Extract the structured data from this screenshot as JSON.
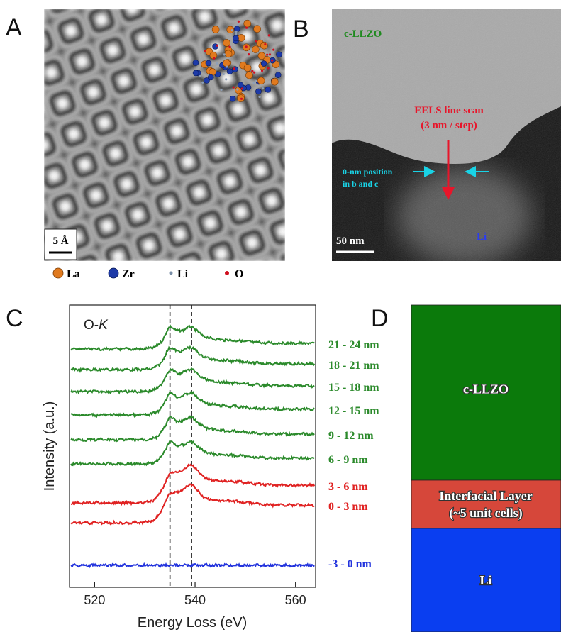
{
  "panel_a": {
    "label": "A",
    "scale_bar": "5 Å",
    "legend": [
      "La",
      "Zr",
      "Li",
      "O"
    ]
  },
  "panel_b": {
    "label": "B",
    "phase_top": "c-LLZO",
    "scan_title": "EELS line scan",
    "scan_step": "(3 nm / step)",
    "position_note": [
      "0-nm position",
      "in b and c"
    ],
    "scale_bar": "50 nm",
    "phase_bottom": "Li"
  },
  "panel_c": {
    "label": "C",
    "edge": "O-",
    "edge_italic": "K",
    "y_label": "Intensity (a.u.)",
    "x_label": "Energy Loss (eV)",
    "xlim": [
      515,
      564
    ],
    "xticks": [
      520,
      540,
      560
    ],
    "reference_lines": [
      535,
      539.3
    ],
    "spectra": [
      {
        "name": "21 - 24 nm",
        "color": "#2b8a2b"
      },
      {
        "name": "18 - 21 nm",
        "color": "#2b8a2b"
      },
      {
        "name": "15 - 18 nm",
        "color": "#2b8a2b"
      },
      {
        "name": "12 - 15 nm",
        "color": "#2b8a2b"
      },
      {
        "name": "9 - 12 nm",
        "color": "#2b8a2b"
      },
      {
        "name": "6 - 9 nm",
        "color": "#2b8a2b"
      },
      {
        "name": "3 - 6 nm",
        "color": "#e02222"
      },
      {
        "name": "0 - 3 nm",
        "color": "#e02222"
      },
      {
        "name": "-3 - 0 nm",
        "color": "#2233dd"
      }
    ]
  },
  "panel_d": {
    "label": "D",
    "layers": [
      {
        "lines": [
          "c-LLZO"
        ],
        "color": "#0b7a0b"
      },
      {
        "lines": [
          "Interfacial Layer",
          "(~5 unit cells)"
        ],
        "color": "#d6473a"
      },
      {
        "lines": [
          "Li"
        ],
        "color": "#0a3ef0"
      }
    ]
  }
}
